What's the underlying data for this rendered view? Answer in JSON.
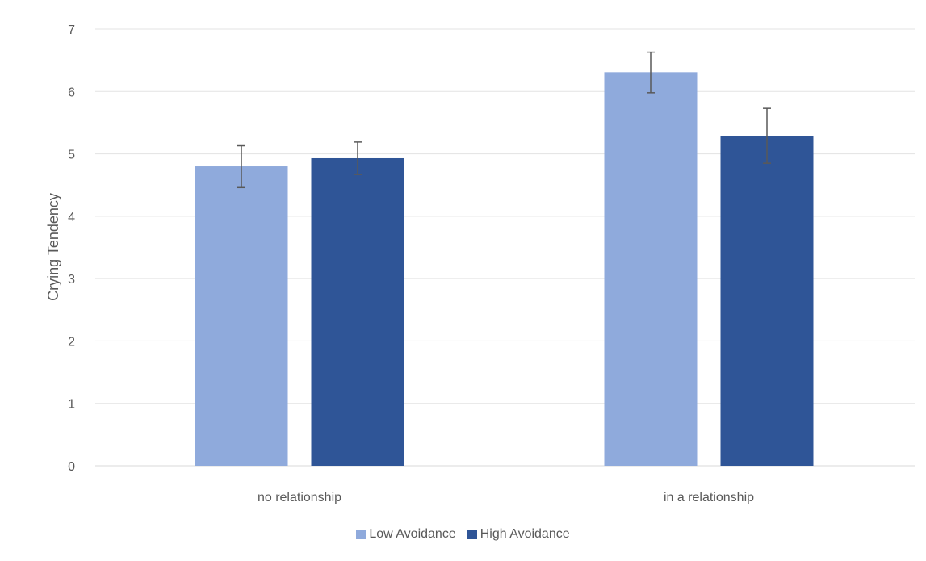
{
  "chart_data": {
    "type": "bar",
    "title": "",
    "xlabel": "",
    "ylabel": "Crying Tendency",
    "categories": [
      "no relationship",
      "in a relationship"
    ],
    "ylim": [
      0,
      7
    ],
    "yticks": [
      0,
      1,
      2,
      3,
      4,
      5,
      6,
      7
    ],
    "grid": true,
    "legend_position": "bottom",
    "series": [
      {
        "name": "Low Avoidance",
        "color": "#8faadc",
        "values": [
          4.8,
          6.31
        ],
        "error_low": [
          4.46,
          5.98
        ],
        "error_high": [
          5.13,
          6.63
        ]
      },
      {
        "name": "High Avoidance",
        "color": "#2f5597",
        "values": [
          4.93,
          5.29
        ],
        "error_low": [
          4.67,
          4.85
        ],
        "error_high": [
          5.19,
          5.73
        ]
      }
    ]
  }
}
